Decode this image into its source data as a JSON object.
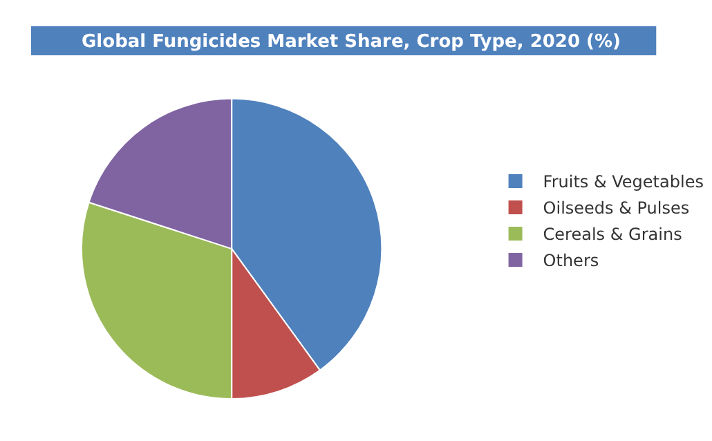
{
  "chart_data": {
    "type": "pie",
    "title": "Global Fungicides Market Share, Crop Type, 2020 (%)",
    "categories": [
      "Fruits & Vegetables",
      "Oilseeds & Pulses",
      "Cereals & Grains",
      "Others"
    ],
    "values": [
      40,
      10,
      30,
      20
    ],
    "colors": [
      "#4f81bd",
      "#c0504d",
      "#9bbb59",
      "#8064a2"
    ],
    "legend": "right"
  }
}
